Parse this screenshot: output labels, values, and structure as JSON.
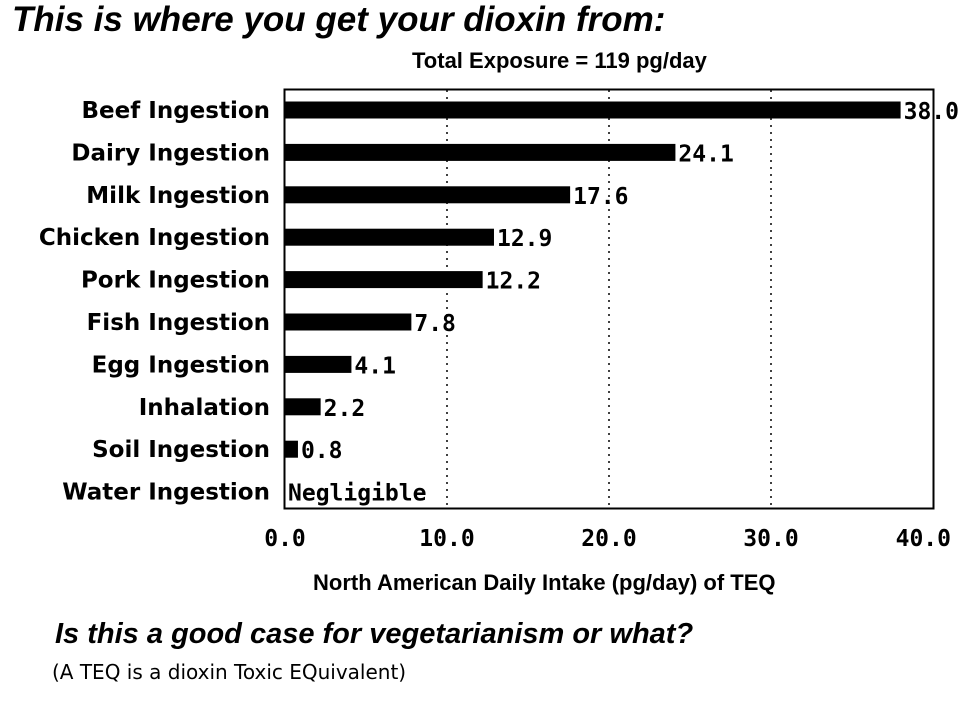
{
  "headline": "This is where you get your dioxin from:",
  "question": "Is this a good case for vegetarianism or what?",
  "footnote": "(A TEQ is a dioxin Toxic EQuivalent)",
  "chart_data": {
    "type": "bar",
    "orientation": "horizontal",
    "title": "Total Exposure = 119 pg/day",
    "xlabel": "North American Daily Intake (pg/day) of TEQ",
    "ylabel": "",
    "xlim": [
      0,
      40
    ],
    "xticks": [
      "0.0",
      "10.0",
      "20.0",
      "30.0",
      "40.0"
    ],
    "grid": "dotted vertical",
    "bar_color": "#000000",
    "categories": [
      "Beef Ingestion",
      "Dairy Ingestion",
      "Milk Ingestion",
      "Chicken Ingestion",
      "Pork Ingestion",
      "Fish Ingestion",
      "Egg Ingestion",
      "Inhalation",
      "Soil Ingestion",
      "Water Ingestion"
    ],
    "values": [
      38.0,
      24.1,
      17.6,
      12.9,
      12.2,
      7.8,
      4.1,
      2.2,
      0.8,
      0
    ],
    "value_labels": [
      "38.0",
      "24.1",
      "17.6",
      "12.9",
      "12.2",
      "7.8",
      "4.1",
      "2.2",
      "0.8",
      "Negligible"
    ]
  }
}
